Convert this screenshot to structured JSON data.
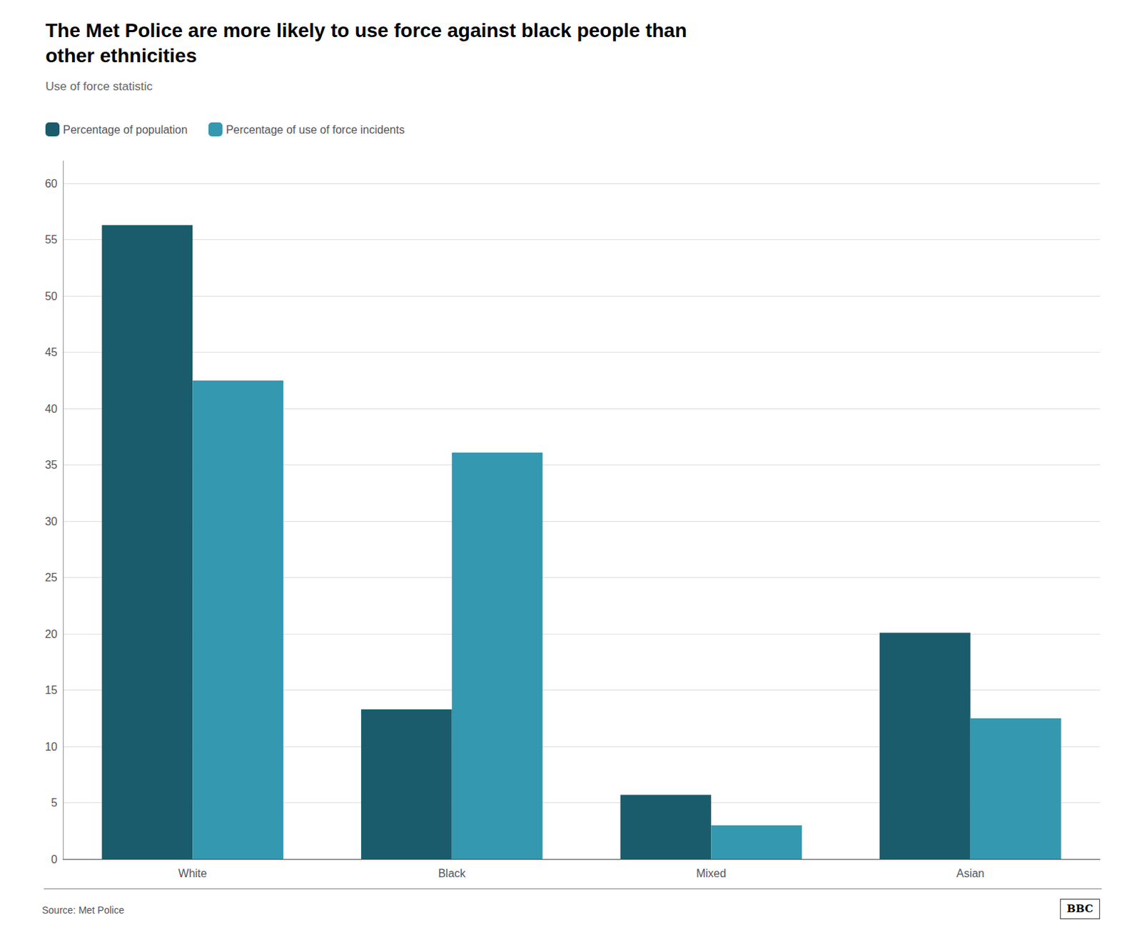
{
  "chart_data": {
    "type": "bar",
    "title": "The Met Police are more likely to use force against black people than\nother ethnicities",
    "subtitle": "Use of force statistic",
    "source": "Source: Met Police",
    "annotations": [
      "BBC"
    ],
    "categories": [
      "White",
      "Black",
      "Mixed",
      "Asian"
    ],
    "series": [
      {
        "name": "Percentage of population",
        "color": "#1a5c6b",
        "values": [
          56.3,
          13.3,
          5.7,
          20.1
        ]
      },
      {
        "name": "Percentage of use of force incidents",
        "color": "#3498b0",
        "values": [
          42.5,
          36.1,
          3.0,
          12.5
        ]
      }
    ],
    "ylim": [
      0,
      62
    ],
    "yticks": [
      0,
      5,
      10,
      15,
      20,
      25,
      30,
      35,
      40,
      45,
      50,
      55,
      60
    ],
    "grid": true,
    "legend": "upper left"
  }
}
